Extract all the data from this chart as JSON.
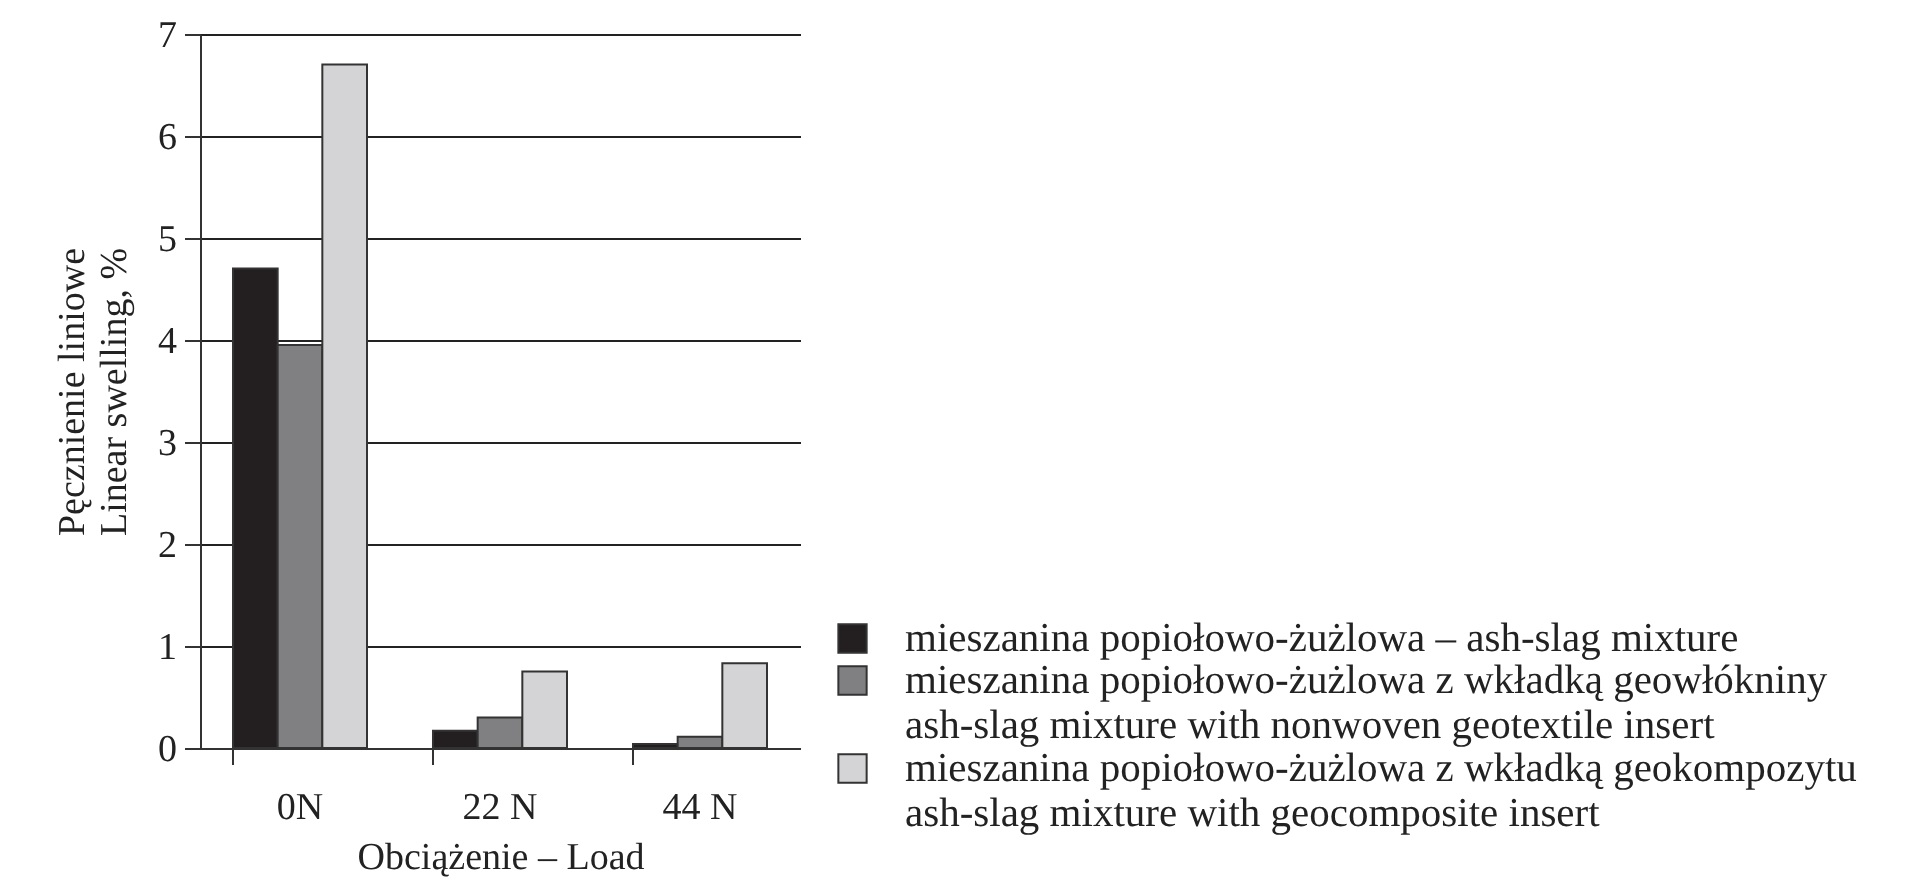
{
  "chart_data": {
    "type": "bar",
    "xlabel": "Obciążenie – Load",
    "ylabel": "Pęcznienie liniowe\nLinear swelling, %",
    "categories": [
      "0N",
      "22 N",
      "44 N"
    ],
    "series": [
      {
        "name": "mieszanina popiołowo-żużlowa – ash-slag mixture",
        "color": "#231f20",
        "values": [
          4.7,
          0.17,
          0.04
        ]
      },
      {
        "name": "mieszanina popiołowo-żużlowa z wkładką geowłókniny\nash-slag mixture with nonwoven geotextile insert",
        "color": "#808083",
        "values": [
          3.95,
          0.3,
          0.11
        ]
      },
      {
        "name": "mieszanina popiołowo-żużlowa z wkładką geokompozytu\nash-slag mixture with geocomposite insert",
        "color": "#d4d4d6",
        "values": [
          6.7,
          0.75,
          0.83
        ]
      }
    ],
    "ylim": [
      0,
      7
    ],
    "yticks": [
      0,
      1,
      2,
      3,
      4,
      5,
      6,
      7
    ],
    "grid": "y",
    "legend": "bottom right"
  }
}
